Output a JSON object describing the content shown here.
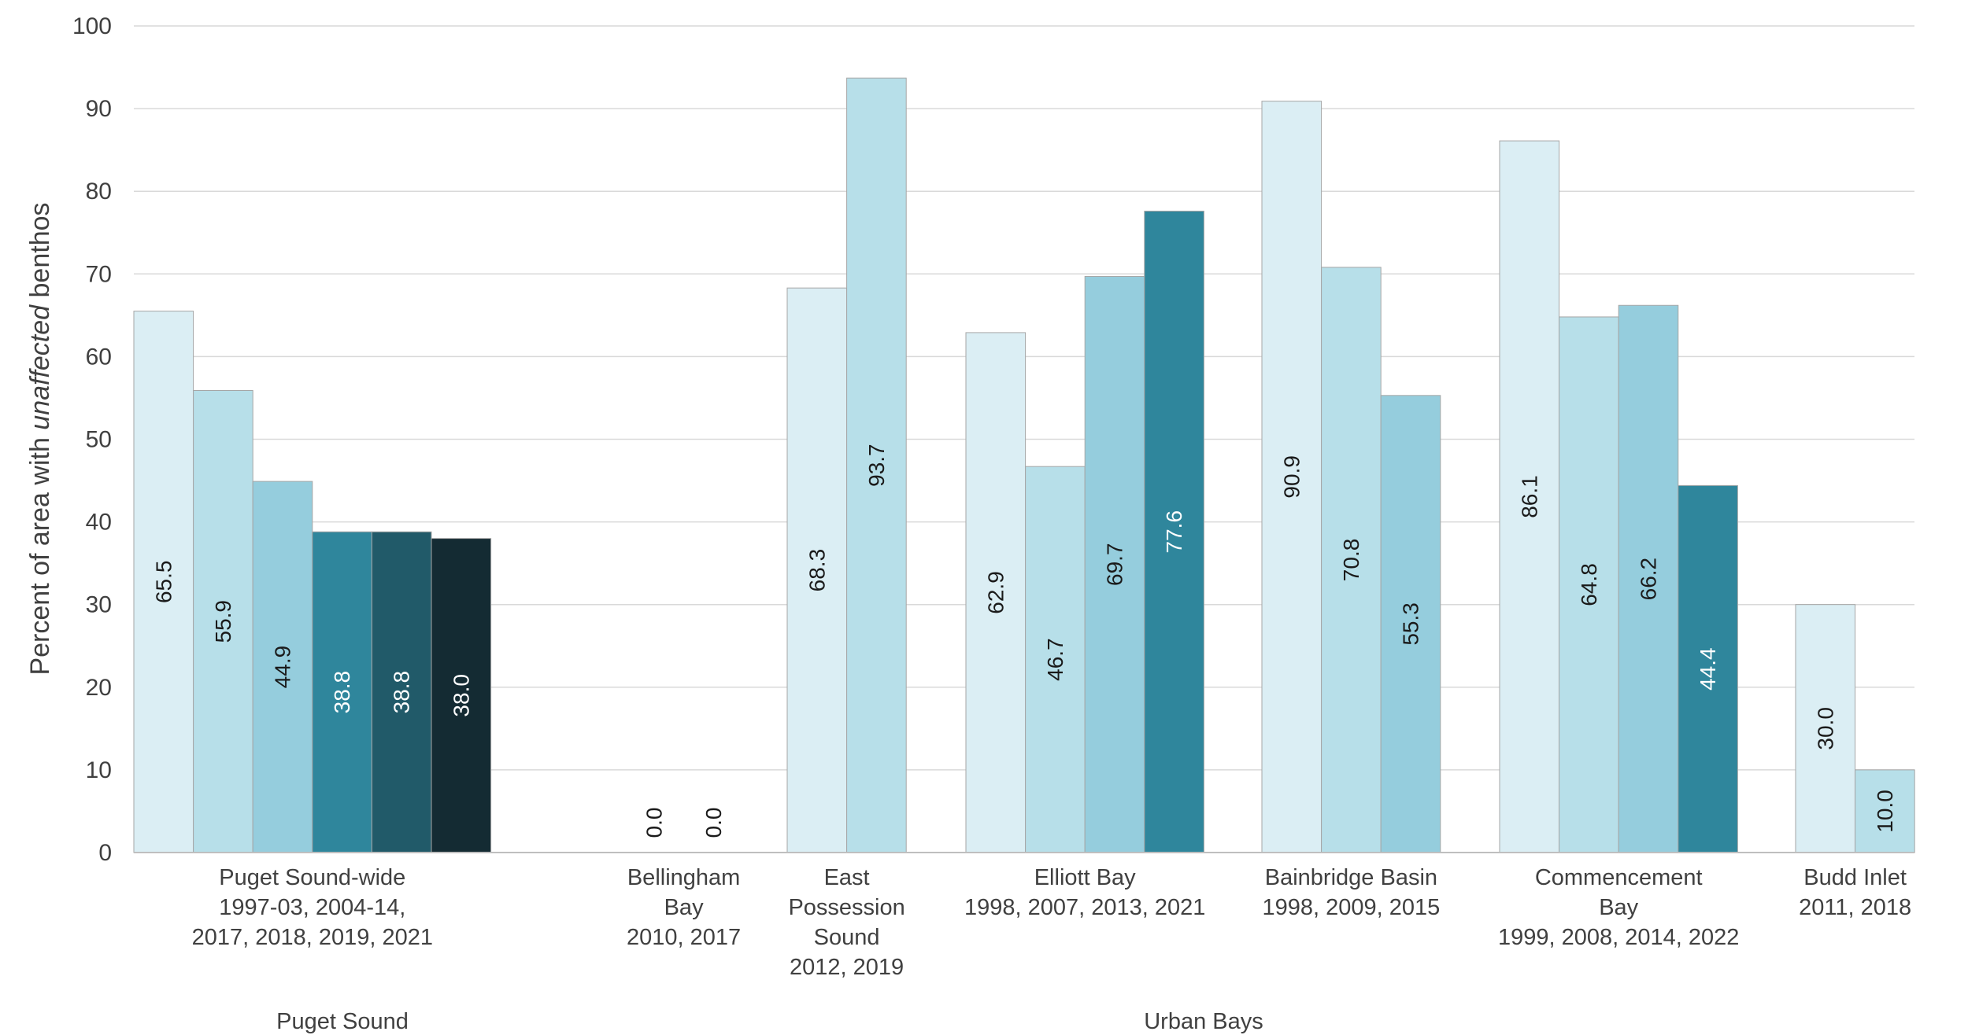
{
  "chart_data": {
    "type": "bar",
    "ylabel": "Percent of area with unaffected benthos",
    "ylabel_parts": [
      {
        "text": "Percent of area with ",
        "italic": false
      },
      {
        "text": "unaffected",
        "italic": true
      },
      {
        "text": " benthos",
        "italic": false
      }
    ],
    "ylim": [
      0,
      100
    ],
    "yticks": [
      "0",
      "10",
      "20",
      "30",
      "40",
      "50",
      "60",
      "70",
      "80",
      "90",
      "100"
    ],
    "grid": true,
    "legend": "none",
    "colors": [
      "#dbeef4",
      "#b7dfe9",
      "#95cddd",
      "#2f869c",
      "#215a69",
      "#142b33"
    ],
    "groups": [
      {
        "name": "Puget Sound",
        "categories": [
          "Puget Sound-wide"
        ]
      },
      {
        "name": "Urban Bays",
        "categories": [
          "Bellingham Bay",
          "East Possession Sound",
          "Elliott Bay",
          "Bainbridge Basin",
          "Commencement Bay",
          "Budd Inlet"
        ]
      }
    ],
    "categories": [
      {
        "name": "Puget Sound-wide",
        "label_lines": [
          "Puget Sound-wide",
          "1997-03, 2004-14,",
          "2017, 2018, 2019, 2021"
        ],
        "values": [
          65.5,
          55.9,
          44.9,
          38.8,
          38.8,
          38.0
        ],
        "labels": [
          "65.5",
          "55.9",
          "44.9",
          "38.8",
          "38.8",
          "38.0"
        ]
      },
      {
        "name": "Bellingham Bay",
        "label_lines": [
          "Bellingham",
          "Bay",
          "2010, 2017"
        ],
        "values": [
          0.0,
          0.0
        ],
        "labels": [
          "0.0",
          "0.0"
        ]
      },
      {
        "name": "East Possession Sound",
        "label_lines": [
          "East",
          "Possession",
          "Sound",
          "2012, 2019"
        ],
        "values": [
          68.3,
          93.7
        ],
        "labels": [
          "68.3",
          "93.7"
        ]
      },
      {
        "name": "Elliott Bay",
        "label_lines": [
          "Elliott Bay",
          "1998, 2007, 2013, 2021"
        ],
        "values": [
          62.9,
          46.7,
          69.7,
          77.6
        ],
        "labels": [
          "62.9",
          "46.7",
          "69.7",
          "77.6"
        ]
      },
      {
        "name": "Bainbridge Basin",
        "label_lines": [
          "Bainbridge Basin",
          "1998, 2009, 2015"
        ],
        "values": [
          90.9,
          70.8,
          55.3
        ],
        "labels": [
          "90.9",
          "70.8",
          "55.3"
        ]
      },
      {
        "name": "Commencement Bay",
        "label_lines": [
          "Commencement",
          "Bay",
          "1999, 2008, 2014, 2022"
        ],
        "values": [
          86.1,
          64.8,
          66.2,
          44.4
        ],
        "labels": [
          "86.1",
          "64.8",
          "66.2",
          "44.4"
        ]
      },
      {
        "name": "Budd Inlet",
        "label_lines": [
          "Budd Inlet",
          "2011, 2018"
        ],
        "values": [
          30.0,
          10.0
        ],
        "labels": [
          "30.0",
          "10.0"
        ]
      }
    ]
  }
}
